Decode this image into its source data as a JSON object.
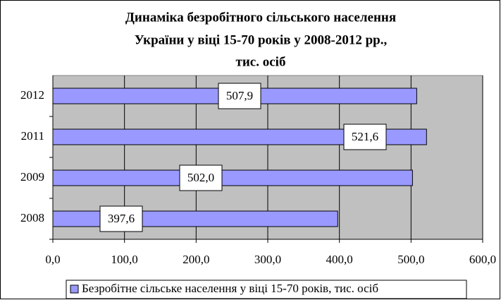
{
  "chart_data": {
    "type": "barh",
    "title": [
      "Динаміка безробітного сільського населення",
      "України у віці 15-70 років у 2008-2012 рр.,",
      "тис. осіб"
    ],
    "categories": [
      "2008",
      "2009",
      "2011",
      "2012"
    ],
    "series": [
      {
        "name": "Безробітне сільське населення у віці 15-70 років, тис. осіб",
        "color": "#9999ff",
        "values": [
          397.6,
          502.0,
          521.6,
          507.9
        ],
        "value_labels": [
          "397,6",
          "502,0",
          "521,6",
          "507,9"
        ]
      }
    ],
    "xlim": [
      0,
      600
    ],
    "xticks": [
      {
        "value": 0,
        "label": "0,0"
      },
      {
        "value": 100,
        "label": "100,0"
      },
      {
        "value": 200,
        "label": "200,0"
      },
      {
        "value": 300,
        "label": "300,0"
      },
      {
        "value": 400,
        "label": "400,0"
      },
      {
        "value": 500,
        "label": "500,0"
      },
      {
        "value": 600,
        "label": "600,0"
      }
    ],
    "grid": true,
    "legend": "bottom"
  }
}
